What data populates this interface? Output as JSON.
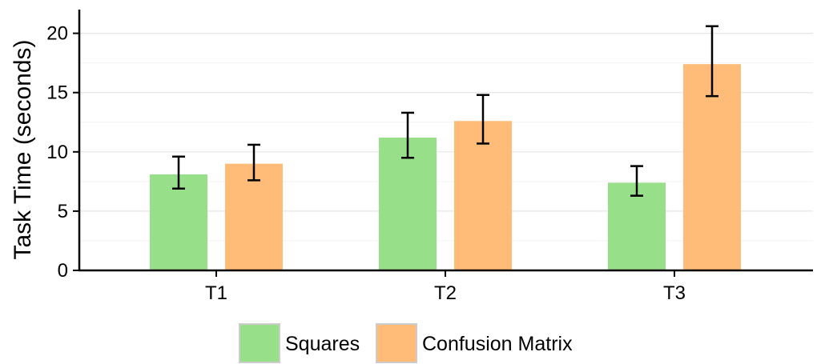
{
  "chart_data": {
    "type": "bar",
    "categories": [
      "T1",
      "T2",
      "T3"
    ],
    "series": [
      {
        "name": "Squares",
        "color": "#98df8a",
        "values": [
          8.1,
          11.2,
          7.4
        ],
        "error_low": [
          6.9,
          9.5,
          6.3
        ],
        "error_high": [
          9.6,
          13.3,
          8.8
        ]
      },
      {
        "name": "Confusion Matrix",
        "color": "#ffbb78",
        "values": [
          9.0,
          12.6,
          17.4
        ],
        "error_low": [
          7.6,
          10.7,
          14.7
        ],
        "error_high": [
          10.6,
          14.8,
          20.6
        ]
      }
    ],
    "title": "",
    "xlabel": "",
    "ylabel": "Task Time (seconds)",
    "ylim": [
      0,
      22
    ],
    "yticks": [
      0,
      5,
      10,
      15,
      20
    ],
    "grid": true,
    "legend_position": "bottom-center"
  }
}
